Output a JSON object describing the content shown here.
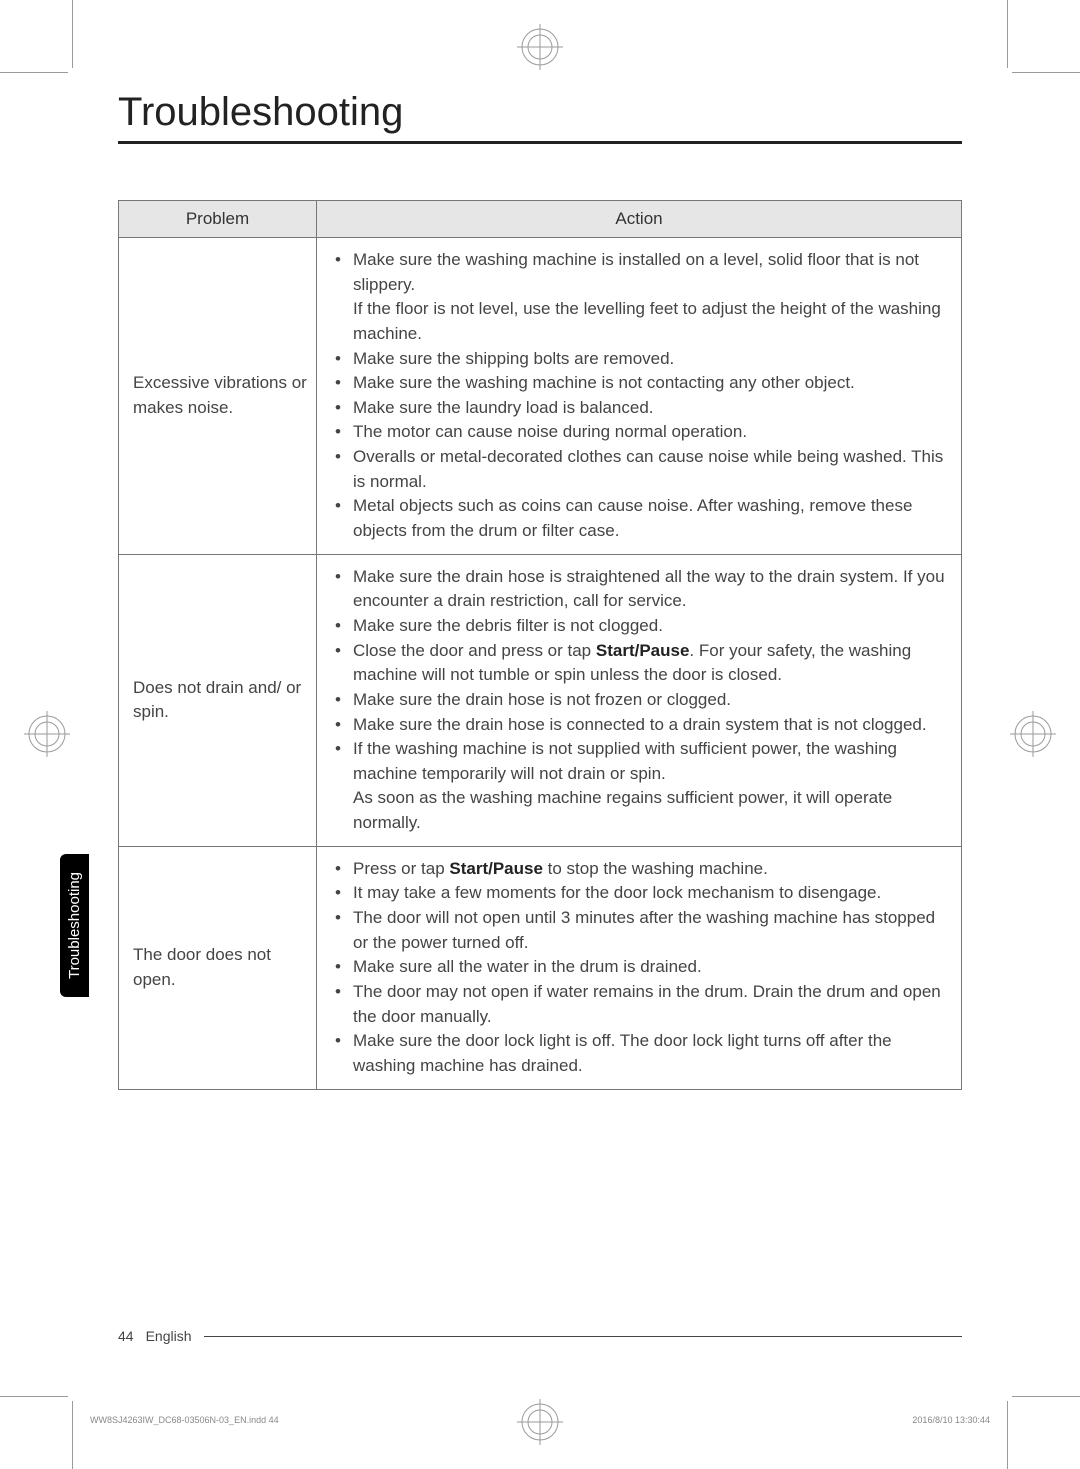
{
  "title": "Troubleshooting",
  "table": {
    "headers": {
      "problem": "Problem",
      "action": "Action"
    },
    "rows": [
      {
        "problem": "Excessive vibrations or makes noise.",
        "actions": [
          {
            "pre": "Make sure the washing machine is installed on a level, solid floor that is not slippery.\nIf the floor is not level, use the levelling feet to adjust the height of the washing machine."
          },
          {
            "pre": "Make sure the shipping bolts are removed."
          },
          {
            "pre": "Make sure the washing machine is not contacting any other object."
          },
          {
            "pre": "Make sure the laundry load is balanced."
          },
          {
            "pre": "The motor can cause noise during normal operation."
          },
          {
            "pre": "Overalls or metal-decorated clothes can cause noise while being washed. This is normal."
          },
          {
            "pre": "Metal objects such as coins can cause noise. After washing, remove these objects from the drum or filter case."
          }
        ]
      },
      {
        "problem": "Does not drain and/ or spin.",
        "actions": [
          {
            "pre": "Make sure the drain hose is straightened all the way to the drain system. If you encounter a drain restriction, call for service."
          },
          {
            "pre": "Make sure the debris filter is not clogged."
          },
          {
            "pre": "Close the door and press or tap ",
            "bold": "Start/Pause",
            "post": ". For your safety, the washing machine will not tumble or spin unless the door is closed."
          },
          {
            "pre": "Make sure the drain hose is not frozen or clogged."
          },
          {
            "pre": "Make sure the drain hose is connected to a drain system that is not clogged."
          },
          {
            "pre": "If the washing machine is not supplied with sufficient power, the washing machine temporarily will not drain or spin.\nAs soon as the washing machine regains sufficient power, it will operate normally."
          }
        ]
      },
      {
        "problem": "The door does not open.",
        "actions": [
          {
            "pre": "Press or tap ",
            "bold": "Start/Pause",
            "post": " to stop the washing machine."
          },
          {
            "pre": "It may take a few moments for the door lock mechanism to disengage."
          },
          {
            "pre": "The door will not open until 3 minutes after the washing machine has stopped or the power turned off."
          },
          {
            "pre": "Make sure all the water in the drum is drained."
          },
          {
            "pre": "The door may not open if water remains in the drum. Drain the drum and open the door manually."
          },
          {
            "pre": "Make sure the door lock light is off. The door lock light turns off after the washing machine has drained."
          }
        ]
      }
    ]
  },
  "side_tab": "Troubleshooting",
  "footer": {
    "page_num": "44",
    "lang": "English"
  },
  "imprint": {
    "file": "WW8SJ4263IW_DC68-03506N-03_EN.indd   44",
    "date": "2016/8/10   13:30:44"
  }
}
